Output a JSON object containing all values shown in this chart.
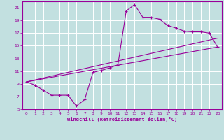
{
  "title": "",
  "xlabel": "Windchill (Refroidissement éolien,°C)",
  "ylabel": "",
  "bg_color": "#c2e0e0",
  "grid_color": "#ffffff",
  "line_color": "#990099",
  "xlim": [
    -0.5,
    23.5
  ],
  "ylim": [
    5,
    22
  ],
  "xticks": [
    0,
    1,
    2,
    3,
    4,
    5,
    6,
    7,
    8,
    9,
    10,
    11,
    12,
    13,
    14,
    15,
    16,
    17,
    18,
    19,
    20,
    21,
    22,
    23
  ],
  "yticks": [
    5,
    7,
    9,
    11,
    13,
    15,
    17,
    19,
    21
  ],
  "series1_x": [
    0,
    1,
    2,
    3,
    4,
    5,
    6,
    7,
    8,
    9,
    10,
    11,
    12,
    13,
    14,
    15,
    16,
    17,
    18,
    19,
    20,
    21,
    22,
    23
  ],
  "series1_y": [
    9.3,
    8.8,
    8.0,
    7.2,
    7.2,
    7.2,
    5.5,
    6.5,
    10.8,
    11.1,
    11.5,
    12.0,
    20.5,
    21.5,
    19.5,
    19.5,
    19.2,
    18.2,
    17.8,
    17.3,
    17.2,
    17.2,
    17.0,
    14.8
  ],
  "series2_x": [
    0,
    23
  ],
  "series2_y": [
    9.3,
    16.2
  ],
  "series3_x": [
    0,
    23
  ],
  "series3_y": [
    9.3,
    14.8
  ]
}
